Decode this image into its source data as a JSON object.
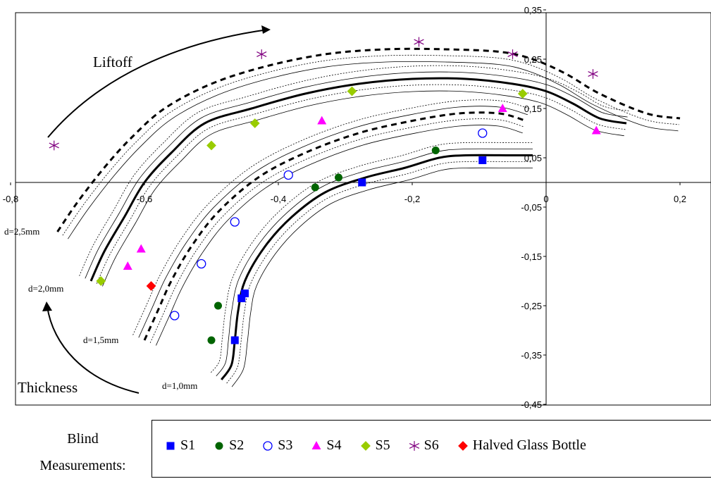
{
  "chart_data": {
    "type": "scatter",
    "title": "",
    "xlim": [
      -0.8,
      0.22
    ],
    "ylim": [
      -0.45,
      0.35
    ],
    "x_ticks": [
      {
        "value": -0.8,
        "label": "-0,8"
      },
      {
        "value": -0.6,
        "label": "-0,6"
      },
      {
        "value": -0.4,
        "label": "-0,4"
      },
      {
        "value": -0.2,
        "label": "-0,2"
      },
      {
        "value": 0,
        "label": "0"
      },
      {
        "value": 0.2,
        "label": "0,2"
      }
    ],
    "y_ticks": [
      {
        "value": 0.35,
        "label": "0,35"
      },
      {
        "value": 0.25,
        "label": "0,25"
      },
      {
        "value": 0.15,
        "label": "0,15"
      },
      {
        "value": 0.05,
        "label": "0,05"
      },
      {
        "value": -0.05,
        "label": "-0,05"
      },
      {
        "value": -0.15,
        "label": "-0,15"
      },
      {
        "value": -0.25,
        "label": "-0,25"
      },
      {
        "value": -0.35,
        "label": "-0,35"
      },
      {
        "value": -0.45,
        "label": "-0,45"
      }
    ],
    "grid": false,
    "legend_position": "bottom",
    "annotations": {
      "liftoff": "Liftoff",
      "thickness": "Thickness",
      "d25": "d=2,5mm",
      "d20": "d=2,0mm",
      "d15": "d=1,5mm",
      "d10": "d=1,0mm"
    },
    "contours": [
      {
        "name": "d=1,0mm",
        "style": "bold",
        "points": [
          [
            -0.485,
            -0.4
          ],
          [
            -0.47,
            -0.37
          ],
          [
            -0.465,
            -0.32
          ],
          [
            -0.46,
            -0.26
          ],
          [
            -0.45,
            -0.2
          ],
          [
            -0.42,
            -0.13
          ],
          [
            -0.38,
            -0.07
          ],
          [
            -0.33,
            -0.02
          ],
          [
            -0.27,
            0.01
          ],
          [
            -0.21,
            0.03
          ],
          [
            -0.16,
            0.05
          ],
          [
            -0.12,
            0.055
          ],
          [
            -0.05,
            0.055
          ],
          [
            -0.02,
            0.055
          ]
        ]
      },
      {
        "name": "d=1,5mm",
        "style": "dashed",
        "points": [
          [
            -0.6,
            -0.32
          ],
          [
            -0.58,
            -0.26
          ],
          [
            -0.56,
            -0.2
          ],
          [
            -0.53,
            -0.13
          ],
          [
            -0.49,
            -0.06
          ],
          [
            -0.43,
            0.01
          ],
          [
            -0.36,
            0.06
          ],
          [
            -0.28,
            0.1
          ],
          [
            -0.2,
            0.125
          ],
          [
            -0.13,
            0.14
          ],
          [
            -0.07,
            0.14
          ],
          [
            -0.03,
            0.125
          ]
        ]
      },
      {
        "name": "d=2,0mm",
        "style": "bold",
        "points": [
          [
            -0.68,
            -0.2
          ],
          [
            -0.66,
            -0.14
          ],
          [
            -0.63,
            -0.07
          ],
          [
            -0.6,
            0.0
          ],
          [
            -0.56,
            0.06
          ],
          [
            -0.51,
            0.12
          ],
          [
            -0.44,
            0.15
          ],
          [
            -0.36,
            0.18
          ],
          [
            -0.28,
            0.2
          ],
          [
            -0.2,
            0.21
          ],
          [
            -0.12,
            0.21
          ],
          [
            -0.05,
            0.2
          ],
          [
            0.0,
            0.185
          ],
          [
            0.04,
            0.16
          ],
          [
            0.08,
            0.13
          ],
          [
            0.12,
            0.12
          ]
        ]
      },
      {
        "name": "d=2,5mm",
        "style": "dashed",
        "points": [
          [
            -0.73,
            -0.1
          ],
          [
            -0.7,
            -0.04
          ],
          [
            -0.66,
            0.03
          ],
          [
            -0.62,
            0.09
          ],
          [
            -0.57,
            0.15
          ],
          [
            -0.5,
            0.2
          ],
          [
            -0.42,
            0.235
          ],
          [
            -0.33,
            0.26
          ],
          [
            -0.24,
            0.27
          ],
          [
            -0.15,
            0.27
          ],
          [
            -0.07,
            0.265
          ],
          [
            -0.02,
            0.25
          ],
          [
            0.03,
            0.22
          ],
          [
            0.08,
            0.18
          ],
          [
            0.15,
            0.14
          ],
          [
            0.2,
            0.13
          ]
        ]
      }
    ],
    "series": [
      {
        "name": "S1",
        "marker": "square",
        "color": "#0000ff",
        "points": [
          [
            -0.275,
            0.0
          ],
          [
            -0.095,
            0.045
          ],
          [
            -0.45,
            -0.225
          ],
          [
            -0.455,
            -0.235
          ],
          [
            -0.465,
            -0.32
          ]
        ]
      },
      {
        "name": "S2",
        "marker": "circle",
        "color": "#006400",
        "points": [
          [
            -0.165,
            0.065
          ],
          [
            -0.31,
            0.01
          ],
          [
            -0.345,
            -0.01
          ],
          [
            -0.49,
            -0.25
          ],
          [
            -0.5,
            -0.32
          ]
        ]
      },
      {
        "name": "S3",
        "marker": "open-circle",
        "color": "#0000ff",
        "points": [
          [
            -0.095,
            0.1
          ],
          [
            -0.385,
            0.015
          ],
          [
            -0.465,
            -0.08
          ],
          [
            -0.515,
            -0.165
          ],
          [
            -0.555,
            -0.27
          ]
        ]
      },
      {
        "name": "S4",
        "marker": "triangle",
        "color": "#ff00ff",
        "points": [
          [
            -0.335,
            0.125
          ],
          [
            -0.065,
            0.15
          ],
          [
            0.075,
            0.105
          ],
          [
            -0.605,
            -0.135
          ],
          [
            -0.625,
            -0.17
          ]
        ]
      },
      {
        "name": "S5",
        "marker": "diamond",
        "color": "#99cc00",
        "points": [
          [
            -0.29,
            0.185
          ],
          [
            -0.035,
            0.18
          ],
          [
            -0.435,
            0.12
          ],
          [
            -0.5,
            0.075
          ],
          [
            -0.665,
            -0.2
          ]
        ]
      },
      {
        "name": "S6",
        "marker": "star",
        "color": "#800080",
        "points": [
          [
            -0.425,
            0.26
          ],
          [
            -0.19,
            0.285
          ],
          [
            -0.05,
            0.26
          ],
          [
            0.07,
            0.22
          ],
          [
            -0.735,
            0.075
          ]
        ]
      },
      {
        "name": "Halved Glass Bottle",
        "marker": "diamond",
        "color": "#ff0000",
        "points": [
          [
            -0.59,
            -0.21
          ]
        ]
      }
    ]
  },
  "legend": {
    "title_line1": "Blind",
    "title_line2": "Measurements:",
    "items": [
      {
        "label": "S1",
        "marker": "square",
        "color": "#0000ff"
      },
      {
        "label": "S2",
        "marker": "circle",
        "color": "#006400"
      },
      {
        "label": "S3",
        "marker": "open-circle",
        "color": "#0000ff"
      },
      {
        "label": "S4",
        "marker": "triangle",
        "color": "#ff00ff"
      },
      {
        "label": "S5",
        "marker": "diamond",
        "color": "#99cc00"
      },
      {
        "label": "S6",
        "marker": "star",
        "color": "#800080"
      },
      {
        "label": "Halved Glass Bottle",
        "marker": "diamond",
        "color": "#ff0000"
      }
    ]
  }
}
